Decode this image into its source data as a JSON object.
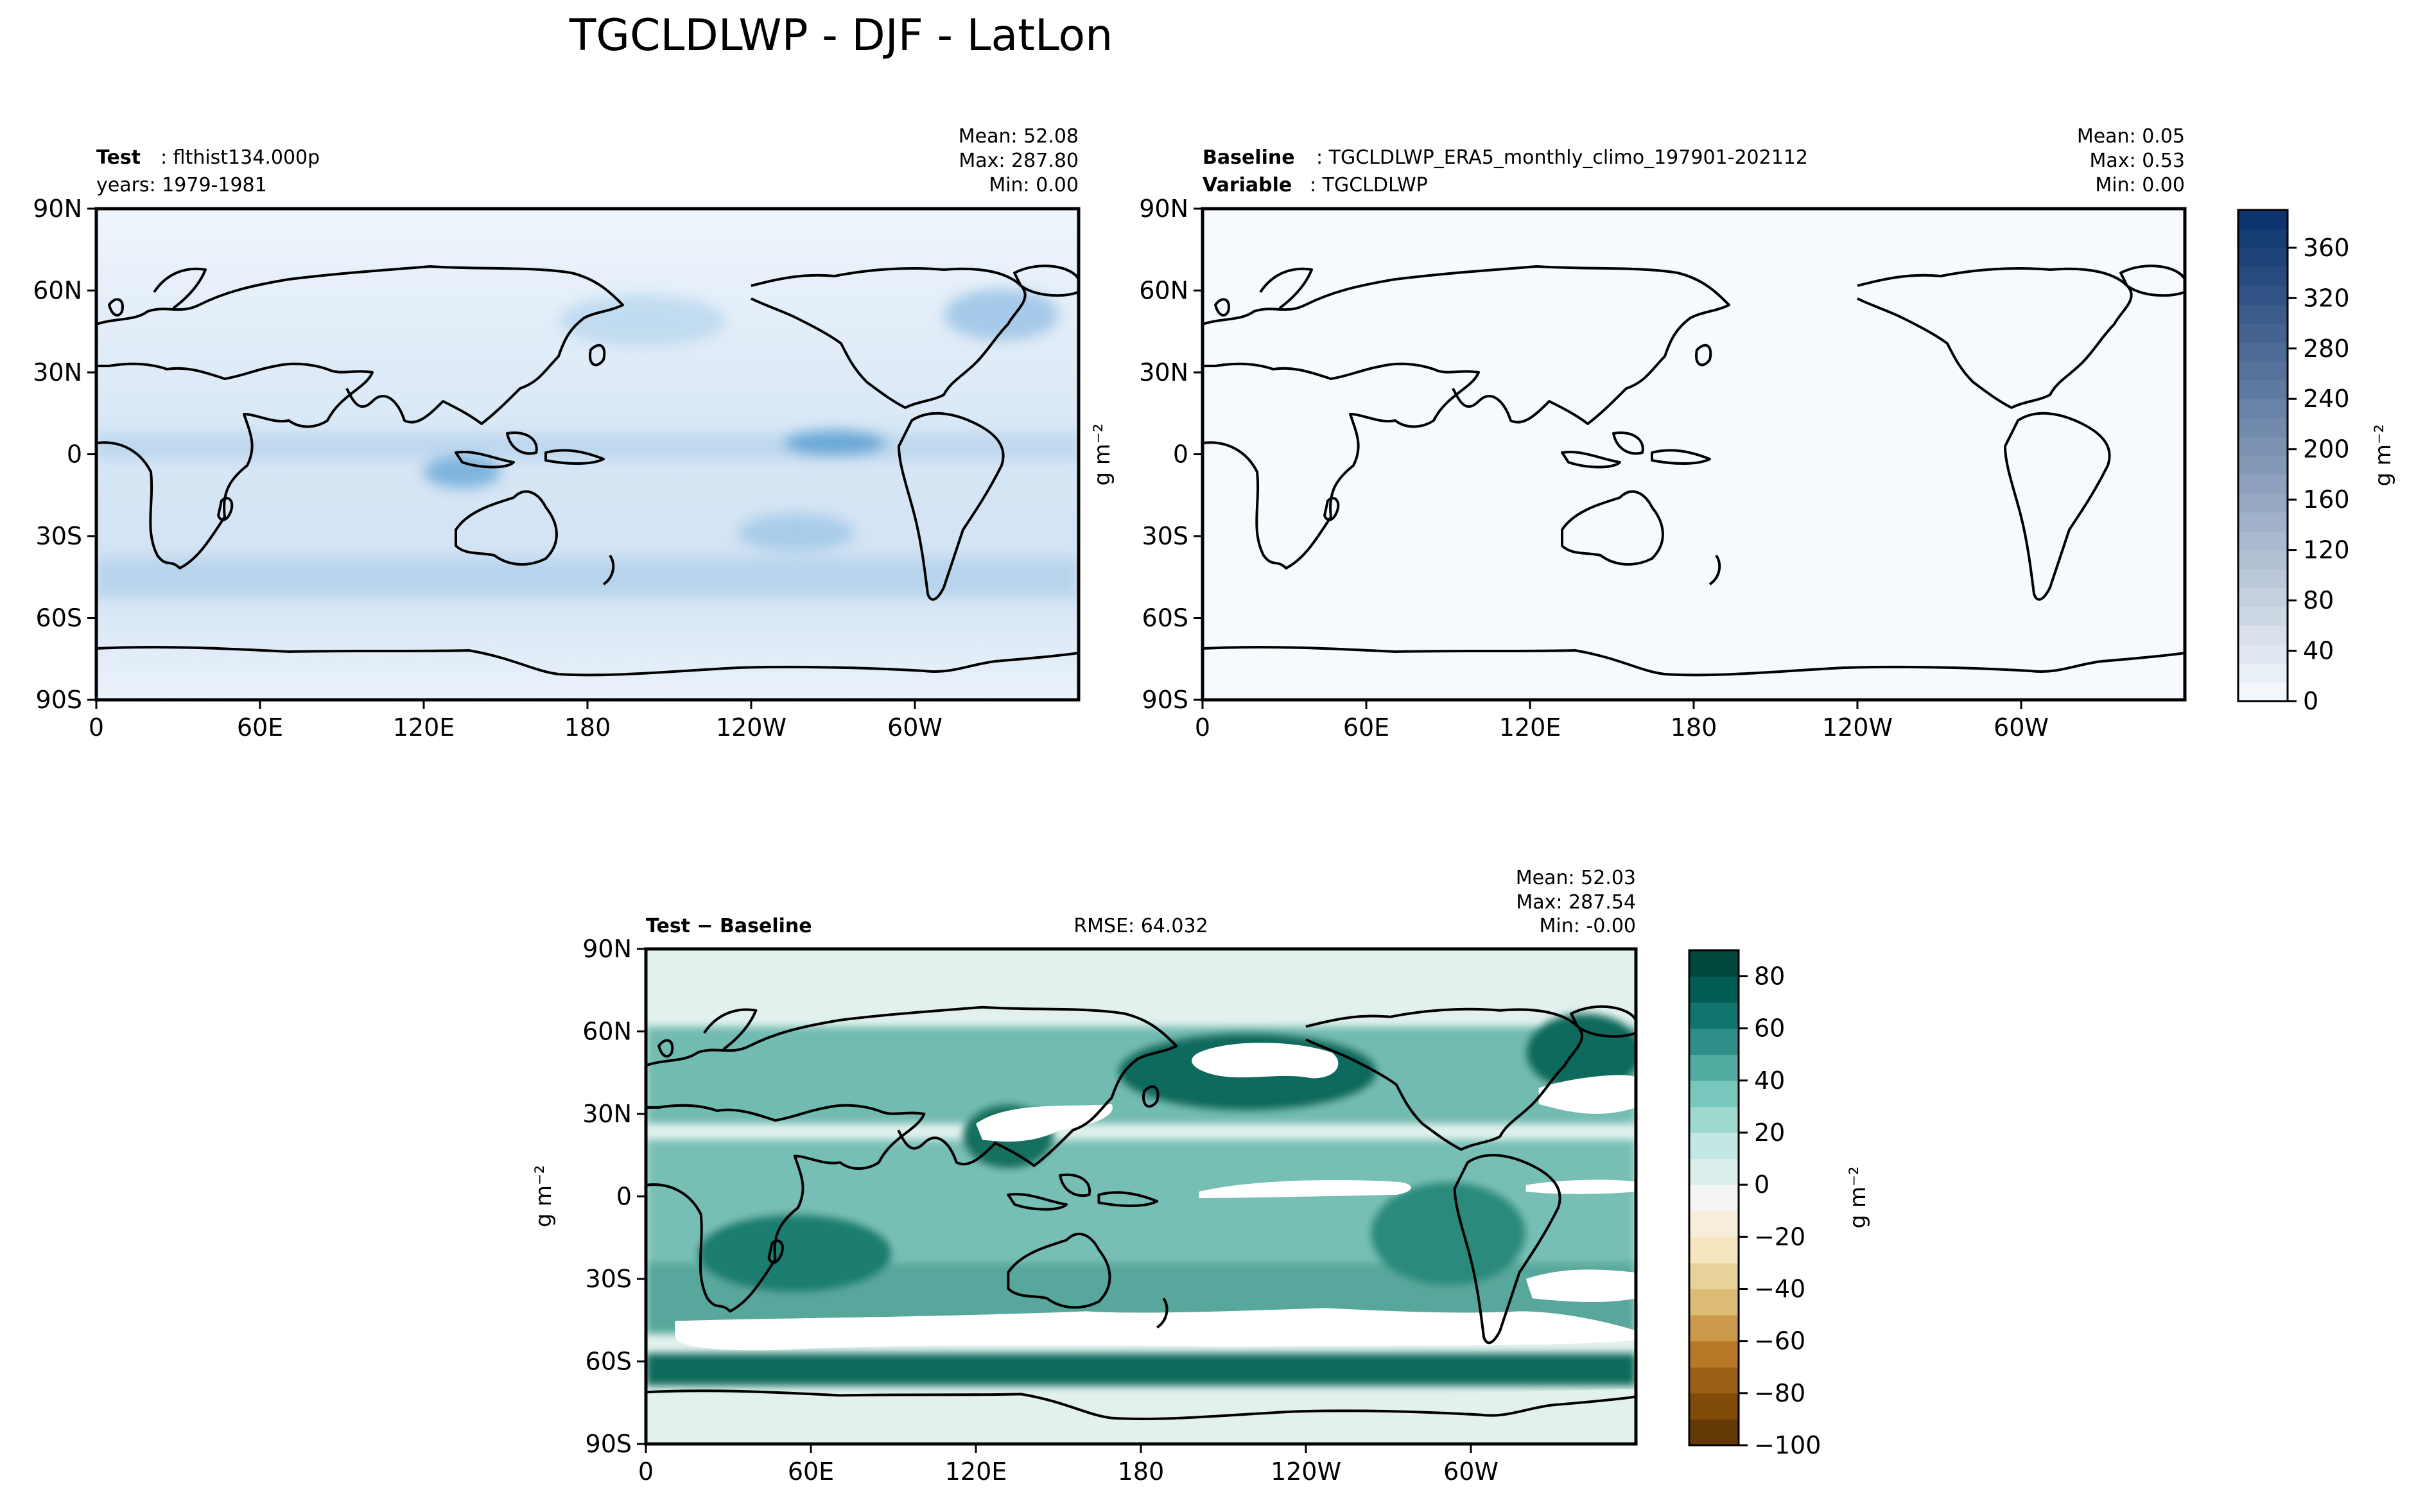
{
  "figure": {
    "title": "TGCLDLWP - DJF - LatLon"
  },
  "chart_data": [
    {
      "type": "heatmap",
      "name": "test",
      "title_left": {
        "label": "Test",
        "value": "flthist134.000p"
      },
      "subtitle_left": "years: 1979-1981",
      "stats": [
        "Mean: 52.08",
        "Max: 287.80",
        "Min:  0.00"
      ],
      "xlabel": "",
      "ylabel": "",
      "x_ticks": [
        "0",
        "60E",
        "120E",
        "180",
        "120W",
        "60W"
      ],
      "y_ticks": [
        "90N",
        "60N",
        "30N",
        "0",
        "30S",
        "60S",
        "90S"
      ],
      "xlim": [
        0,
        360
      ],
      "ylim": [
        -90,
        90
      ],
      "field_description": "Liquid water path, light blue with maxima over storm tracks, ITCZ and subtropical stratocumulus"
    },
    {
      "type": "heatmap",
      "name": "baseline",
      "title_left": {
        "label": "Baseline",
        "value": "TGCLDLWP_ERA5_monthly_climo_197901-202112"
      },
      "subtitle_left": {
        "label": "Variable",
        "value": "TGCLDLWP"
      },
      "stats": [
        "Mean:  0.05",
        "Max:  0.53",
        "Min:  0.00"
      ],
      "xlabel": "",
      "ylabel": "g m⁻²",
      "x_ticks": [
        "0",
        "60E",
        "120E",
        "180",
        "120W",
        "60W"
      ],
      "y_ticks": [
        "90N",
        "60N",
        "30N",
        "0",
        "30S",
        "60S",
        "90S"
      ],
      "xlim": [
        0,
        360
      ],
      "ylim": [
        -90,
        90
      ],
      "colorbar": {
        "label": "g m⁻²",
        "ticks": [
          "0",
          "40",
          "80",
          "120",
          "160",
          "200",
          "240",
          "280",
          "320",
          "360"
        ],
        "range": [
          0,
          390
        ],
        "levels": 26,
        "colors": [
          "#f7fbff",
          "#08306b"
        ]
      }
    },
    {
      "type": "heatmap",
      "name": "difference",
      "title_left": "Test − Baseline",
      "title_center": "RMSE: 64.032",
      "stats": [
        "Mean: 52.03",
        "Max: 287.54",
        "Min: -0.00"
      ],
      "xlabel": "",
      "ylabel": "g m⁻²",
      "x_ticks": [
        "0",
        "60E",
        "120E",
        "180",
        "120W",
        "60W"
      ],
      "y_ticks": [
        "90N",
        "60N",
        "30N",
        "0",
        "30S",
        "60S",
        "90S"
      ],
      "xlim": [
        0,
        360
      ],
      "ylim": [
        -90,
        90
      ],
      "colorbar": {
        "label": "g m⁻²",
        "ticks": [
          "−100",
          "−80",
          "−60",
          "−40",
          "−20",
          "0",
          "20",
          "40",
          "60",
          "80"
        ],
        "range": [
          -100,
          90
        ],
        "levels": 19,
        "colors": [
          "#543005",
          "#8c510a",
          "#bf812d",
          "#dfc27d",
          "#f6e8c3",
          "#f5f5f5",
          "#c7eae5",
          "#80cdc1",
          "#35978f",
          "#01665e",
          "#003c30"
        ]
      }
    }
  ]
}
